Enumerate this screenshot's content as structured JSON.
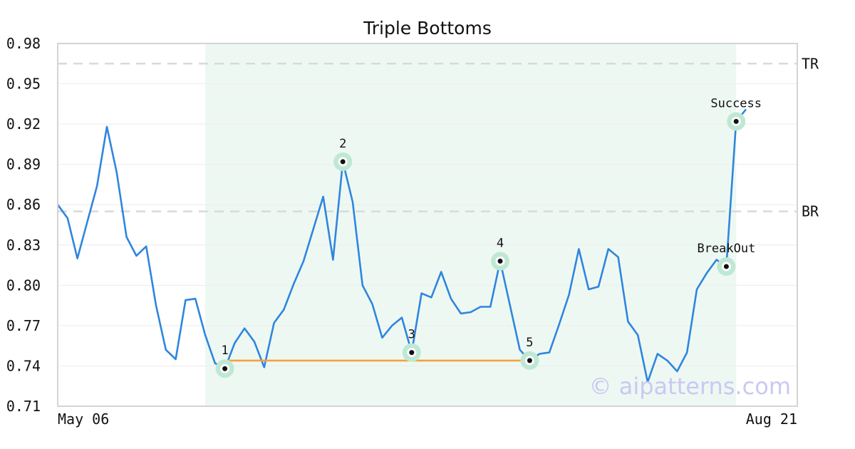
{
  "chart_data": {
    "type": "line",
    "title": "Triple Bottoms",
    "watermark": "© aipatterns.com",
    "ylim": [
      0.71,
      0.98
    ],
    "yticks": [
      "0.98",
      "0.95",
      "0.92",
      "0.89",
      "0.86",
      "0.83",
      "0.80",
      "0.77",
      "0.74",
      "0.71"
    ],
    "xtick_labels": [
      {
        "index": 0,
        "label": "May 06"
      },
      {
        "index": 75,
        "label": "Aug 21"
      }
    ],
    "grid": true,
    "series": [
      {
        "color": "#2e86de",
        "values": [
          0.86,
          0.85,
          0.82,
          0.847,
          0.874,
          0.918,
          0.884,
          0.836,
          0.822,
          0.829,
          0.785,
          0.752,
          0.745,
          0.789,
          0.79,
          0.763,
          0.742,
          0.738,
          0.757,
          0.768,
          0.758,
          0.739,
          0.772,
          0.782,
          0.801,
          0.818,
          0.842,
          0.866,
          0.819,
          0.892,
          0.862,
          0.8,
          0.786,
          0.761,
          0.77,
          0.776,
          0.75,
          0.794,
          0.791,
          0.81,
          0.79,
          0.779,
          0.78,
          0.784,
          0.784,
          0.818,
          0.785,
          0.752,
          0.744,
          0.749,
          0.75,
          0.771,
          0.793,
          0.827,
          0.797,
          0.799,
          0.827,
          0.821,
          0.773,
          0.763,
          0.728,
          0.749,
          0.744,
          0.736,
          0.75,
          0.797,
          0.809,
          0.819,
          0.814,
          0.922,
          0.931
        ]
      }
    ],
    "pattern_region": {
      "start_index": 15,
      "end_index": 69
    },
    "horizontal_levels": [
      {
        "label": "TR",
        "value": 0.965
      },
      {
        "label": "BR",
        "value": 0.855
      }
    ],
    "support_line": {
      "start_index": 17,
      "end_index": 48,
      "value": 0.744,
      "color": "#f5a03c"
    },
    "annotations": [
      {
        "label": "1",
        "index": 17,
        "value": 0.738
      },
      {
        "label": "2",
        "index": 29,
        "value": 0.892
      },
      {
        "label": "3",
        "index": 36,
        "value": 0.75
      },
      {
        "label": "4",
        "index": 45,
        "value": 0.818
      },
      {
        "label": "5",
        "index": 48,
        "value": 0.744
      },
      {
        "label": "BreakOut",
        "index": 68,
        "value": 0.814
      },
      {
        "label": "Success",
        "index": 69,
        "value": 0.922
      }
    ]
  }
}
